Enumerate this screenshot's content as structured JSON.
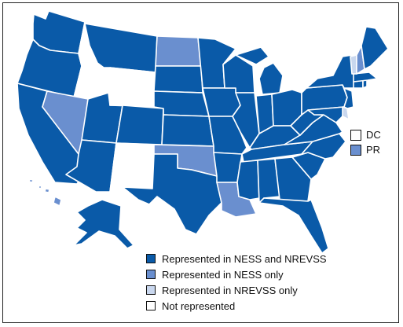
{
  "colors": {
    "ness_nrevss": "#0a5aa8",
    "ness_only": "#6a8fcf",
    "nrevss_only": "#c9d7ee",
    "not_represented": "#ffffff"
  },
  "territories": {
    "dc": {
      "label": "DC",
      "category": "not_represented"
    },
    "pr": {
      "label": "PR",
      "category": "ness_only"
    }
  },
  "legend": [
    {
      "label": "Represented in NESS and NREVSS",
      "category": "ness_nrevss"
    },
    {
      "label": "Represented in NESS only",
      "category": "ness_only"
    },
    {
      "label": "Represented in NREVSS only",
      "category": "nrevss_only"
    },
    {
      "label": "Not represented",
      "category": "not_represented"
    }
  ],
  "states": {
    "WA": "ness_nrevss",
    "OR": "ness_nrevss",
    "CA": "ness_nrevss",
    "ID": "not_represented",
    "NV": "ness_only",
    "UT": "ness_nrevss",
    "AZ": "ness_nrevss",
    "MT": "ness_nrevss",
    "WY": "not_represented",
    "CO": "ness_nrevss",
    "NM": "not_represented",
    "ND": "ness_only",
    "SD": "ness_nrevss",
    "NE": "ness_nrevss",
    "KS": "ness_nrevss",
    "OK": "ness_only",
    "TX": "ness_nrevss",
    "MN": "ness_nrevss",
    "IA": "ness_nrevss",
    "MO": "ness_nrevss",
    "AR": "ness_nrevss",
    "LA": "ness_only",
    "WI": "ness_nrevss",
    "IL": "ness_nrevss",
    "MI": "ness_nrevss",
    "IN": "ness_nrevss",
    "OH": "ness_nrevss",
    "KY": "ness_nrevss",
    "TN": "ness_nrevss",
    "MS": "ness_nrevss",
    "AL": "ness_nrevss",
    "GA": "ness_nrevss",
    "FL": "ness_nrevss",
    "SC": "ness_nrevss",
    "NC": "ness_nrevss",
    "VA": "ness_nrevss",
    "WV": "ness_nrevss",
    "PA": "ness_nrevss",
    "NY": "ness_nrevss",
    "NJ": "ness_nrevss",
    "DE": "nrevss_only",
    "MD": "ness_nrevss",
    "CT": "ness_nrevss",
    "RI": "ness_nrevss",
    "MA": "ness_nrevss",
    "VT": "nrevss_only",
    "NH": "ness_only",
    "ME": "ness_nrevss",
    "AK": "ness_nrevss",
    "HI": "ness_only"
  }
}
